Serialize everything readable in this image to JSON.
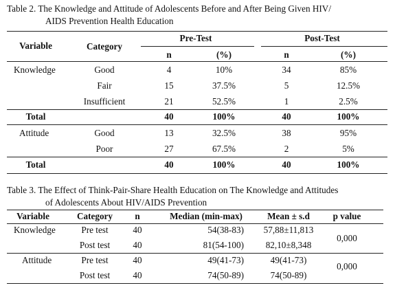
{
  "table2": {
    "caption_line1": "Table 2. The Knowledge and Attitude of Adolescents Before and After Being Given HIV/",
    "caption_line2": "AIDS Prevention Health Education",
    "headers": {
      "variable": "Variable",
      "category": "Category",
      "pre": "Pre-Test",
      "post": "Post-Test",
      "n": "n",
      "pct": "(%)"
    },
    "rows": [
      {
        "variable": "Knowledge",
        "category": "Good",
        "pre_n": "4",
        "pre_pct": "10%",
        "post_n": "34",
        "post_pct": "85%"
      },
      {
        "variable": "",
        "category": "Fair",
        "pre_n": "15",
        "pre_pct": "37.5%",
        "post_n": "5",
        "post_pct": "12.5%"
      },
      {
        "variable": "",
        "category": "Insufficient",
        "pre_n": "21",
        "pre_pct": "52.5%",
        "post_n": "1",
        "post_pct": "2.5%"
      },
      {
        "variable": "Total",
        "category": "",
        "pre_n": "40",
        "pre_pct": "100%",
        "post_n": "40",
        "post_pct": "100%"
      },
      {
        "variable": "Attitude",
        "category": "Good",
        "pre_n": "13",
        "pre_pct": "32.5%",
        "post_n": "38",
        "post_pct": "95%"
      },
      {
        "variable": "",
        "category": "Poor",
        "pre_n": "27",
        "pre_pct": "67.5%",
        "post_n": "2",
        "post_pct": "5%"
      },
      {
        "variable": "Total",
        "category": "",
        "pre_n": "40",
        "pre_pct": "100%",
        "post_n": "40",
        "post_pct": "100%"
      }
    ]
  },
  "table3": {
    "caption_line1": "Table 3. The Effect of Think-Pair-Share Health Education on The  Knowledge and Attitudes",
    "caption_line2": "of Adolescents About HIV/AIDS Prevention",
    "headers": {
      "variable": "Variable",
      "category": "Category",
      "n": "n",
      "median": "Median (min-max)",
      "mean": "Mean ± s.d",
      "p": "p value"
    },
    "rows": [
      {
        "variable": "Knowledge",
        "category": "Pre test",
        "n": "40",
        "median": "54(38-83)",
        "mean": "57,88±11,813"
      },
      {
        "variable": "",
        "category": "Post test",
        "n": "40",
        "median": "81(54-100)",
        "mean": "82,10±8,348"
      },
      {
        "variable": "Attitude",
        "category": "Pre test",
        "n": "40",
        "median": "49(41-73)",
        "mean": "49(41-73)"
      },
      {
        "variable": "",
        "category": "Post test",
        "n": "40",
        "median": "74(50-89)",
        "mean": "74(50-89)"
      }
    ],
    "p_values": [
      "0,000",
      "0,000"
    ]
  }
}
